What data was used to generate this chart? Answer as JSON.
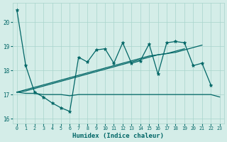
{
  "x": [
    0,
    1,
    2,
    3,
    4,
    5,
    6,
    7,
    8,
    9,
    10,
    11,
    12,
    13,
    14,
    15,
    16,
    17,
    18,
    19,
    20,
    21,
    22,
    23
  ],
  "line_main": [
    20.5,
    18.2,
    17.1,
    16.9,
    16.65,
    16.45,
    16.3,
    18.55,
    18.35,
    18.85,
    18.9,
    18.3,
    19.15,
    18.3,
    18.4,
    19.1,
    17.85,
    19.15,
    19.2,
    19.15,
    18.2,
    18.3,
    17.4,
    null
  ],
  "line_flat": [
    17.1,
    17.05,
    17.05,
    17.0,
    17.0,
    17.0,
    16.95,
    17.0,
    17.0,
    17.0,
    17.0,
    17.0,
    17.0,
    17.0,
    17.0,
    17.0,
    17.0,
    17.0,
    17.0,
    17.0,
    17.0,
    17.0,
    17.0,
    16.9
  ],
  "line_trend1": [
    17.1,
    17.2,
    17.3,
    17.4,
    17.5,
    17.6,
    17.7,
    17.8,
    17.9,
    18.0,
    18.1,
    18.2,
    18.3,
    18.4,
    18.5,
    18.6,
    18.65,
    18.7,
    18.75,
    18.85,
    18.95,
    19.05,
    null,
    null
  ],
  "line_trend2": [
    17.1,
    17.15,
    17.25,
    17.35,
    17.45,
    17.55,
    17.65,
    17.75,
    17.85,
    17.95,
    18.05,
    18.15,
    18.25,
    18.35,
    18.45,
    18.55,
    18.65,
    18.7,
    18.8,
    18.9,
    null,
    null,
    null,
    null
  ],
  "bg_color": "#d4ede8",
  "line_color": "#006666",
  "grid_color": "#a8d4cc",
  "xlabel": "Humidex (Indice chaleur)",
  "ylim": [
    15.8,
    20.8
  ],
  "xlim": [
    -0.5,
    23.5
  ],
  "yticks": [
    16,
    17,
    18,
    19,
    20
  ],
  "xticks": [
    0,
    1,
    2,
    3,
    4,
    5,
    6,
    7,
    8,
    9,
    10,
    11,
    12,
    13,
    14,
    15,
    16,
    17,
    18,
    19,
    20,
    21,
    22,
    23
  ]
}
